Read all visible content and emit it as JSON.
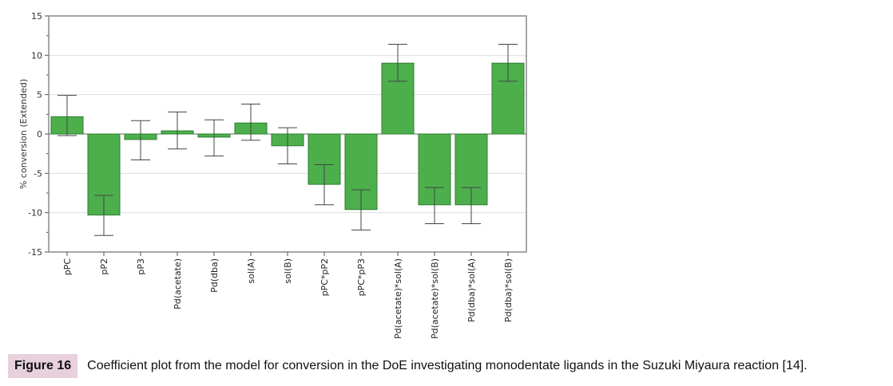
{
  "chart_data": {
    "type": "bar",
    "title": "",
    "xlabel": "",
    "ylabel": "% conversion (Extended)",
    "ylim": [
      -15,
      15
    ],
    "yticks": [
      -15,
      -10,
      -5,
      0,
      5,
      10,
      15
    ],
    "grid": true,
    "categories": [
      "pPC",
      "pP2",
      "pP3",
      "Pd(acetate)",
      "Pd(dba)",
      "sol(A)",
      "sol(B)",
      "pPC*pP2",
      "pPC*pP3",
      "Pd(acetate)*sol(A)",
      "Pd(acetate)*sol(B)",
      "Pd(dba)*sol(A)",
      "Pd(dba)*sol(B)"
    ],
    "values": [
      2.2,
      -10.3,
      -0.7,
      0.4,
      -0.4,
      1.4,
      -1.5,
      -6.4,
      -9.6,
      9.0,
      -9.0,
      -9.0,
      9.0
    ],
    "error_upper": [
      4.9,
      -7.8,
      1.7,
      2.8,
      1.8,
      3.8,
      0.8,
      -3.9,
      -7.1,
      11.4,
      -6.8,
      -6.8,
      11.4
    ],
    "error_lower": [
      -0.2,
      -12.9,
      -3.3,
      -1.9,
      -2.8,
      -0.8,
      -3.8,
      -9.0,
      -12.2,
      6.7,
      -11.4,
      -11.4,
      6.7
    ],
    "colors": {
      "bar": "#4caf4c",
      "bar_edge": "#2e7d32",
      "grid": "#dddddd",
      "axis": "#888888"
    }
  },
  "caption": {
    "label": "Figure 16",
    "text": "Coefficient plot from the model for conversion in the DoE investigating monodentate ligands in the Suzuki Miyaura reaction [14]."
  }
}
